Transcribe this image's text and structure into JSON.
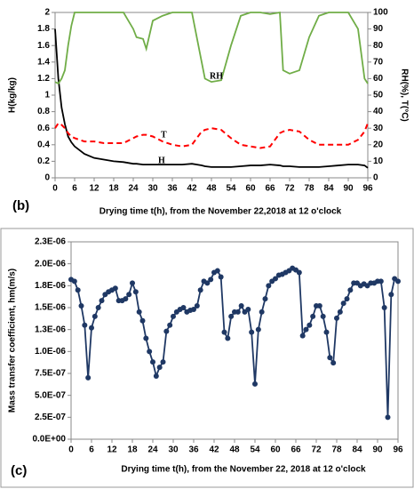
{
  "chart_data": [
    {
      "type": "line",
      "panel": "(b)",
      "x_label": "Drying time t(h), from the November 22,2018 at 12 o'clock",
      "y_label": "H(kg/kg)",
      "y2_label": "RH(%), T(°C)",
      "x": [
        0,
        1,
        2,
        3,
        4,
        5,
        6,
        9,
        12,
        15,
        18,
        21,
        24,
        25,
        27,
        28,
        30,
        33,
        36,
        39,
        42,
        45,
        46,
        48,
        51,
        54,
        57,
        60,
        63,
        66,
        69,
        70,
        72,
        75,
        78,
        81,
        84,
        87,
        90,
        93,
        95,
        96
      ],
      "xlim": [
        0,
        96
      ],
      "xticks": [
        0,
        6,
        12,
        18,
        24,
        30,
        36,
        42,
        48,
        54,
        60,
        66,
        72,
        78,
        84,
        90,
        96
      ],
      "ylim": [
        0,
        2
      ],
      "yticks": [
        0,
        0.2,
        0.4,
        0.6,
        0.8,
        1,
        1.2,
        1.4,
        1.6,
        1.8,
        2
      ],
      "y2lim": [
        0,
        100
      ],
      "y2ticks": [
        0,
        10,
        20,
        30,
        40,
        50,
        60,
        70,
        80,
        90,
        100
      ],
      "series": [
        {
          "name": "H",
          "color": "#000000",
          "axis": "y",
          "values": [
            1.8,
            1.2,
            0.85,
            0.65,
            0.5,
            0.43,
            0.38,
            0.29,
            0.24,
            0.22,
            0.2,
            0.19,
            0.17,
            0.17,
            0.16,
            0.16,
            0.16,
            0.16,
            0.16,
            0.16,
            0.17,
            0.15,
            0.14,
            0.13,
            0.13,
            0.13,
            0.14,
            0.15,
            0.15,
            0.16,
            0.15,
            0.14,
            0.14,
            0.13,
            0.13,
            0.13,
            0.14,
            0.15,
            0.16,
            0.16,
            0.15,
            0.12
          ]
        },
        {
          "name": "T",
          "color": "#ff0000",
          "axis": "y2",
          "dash": true,
          "values": [
            30,
            33,
            32,
            30,
            27,
            25,
            24,
            22,
            22,
            21,
            21,
            21,
            24,
            25,
            26,
            26,
            25,
            22,
            20,
            19,
            20,
            28,
            29,
            30,
            29,
            24,
            20,
            19,
            18,
            19,
            27,
            28,
            29,
            28,
            23,
            20,
            20,
            20,
            20,
            23,
            28,
            33
          ]
        },
        {
          "name": "RH",
          "color": "#70ad47",
          "axis": "y2",
          "values": [
            58,
            57,
            60,
            65,
            80,
            92,
            100,
            100,
            100,
            100,
            100,
            100,
            90,
            85,
            84,
            78,
            95,
            98,
            100,
            100,
            100,
            70,
            60,
            58,
            59,
            80,
            98,
            100,
            100,
            99,
            100,
            65,
            63,
            65,
            85,
            98,
            100,
            100,
            100,
            90,
            60,
            57
          ]
        }
      ]
    },
    {
      "type": "line",
      "panel": "(c)",
      "markers": true,
      "x_label": "Drying time t(h), from the November 22, 2018 at 12 o'clock",
      "y_label": "Mass transfer coefficient, hm(m/s)",
      "color": "#1f3864",
      "x": [
        0,
        1,
        2,
        3,
        4,
        5,
        6,
        7,
        8,
        9,
        10,
        11,
        12,
        13,
        14,
        15,
        16,
        17,
        18,
        19,
        20,
        21,
        22,
        23,
        24,
        25,
        26,
        27,
        28,
        29,
        30,
        31,
        32,
        33,
        34,
        35,
        36,
        37,
        38,
        39,
        40,
        41,
        42,
        43,
        44,
        45,
        46,
        47,
        48,
        49,
        50,
        51,
        52,
        53,
        54,
        55,
        56,
        57,
        58,
        59,
        60,
        61,
        62,
        63,
        64,
        65,
        66,
        67,
        68,
        69,
        70,
        71,
        72,
        73,
        74,
        75,
        76,
        77,
        78,
        79,
        80,
        81,
        82,
        83,
        84,
        85,
        86,
        87,
        88,
        89,
        90,
        91,
        92,
        93,
        94,
        95,
        96
      ],
      "values": [
        1.82e-06,
        1.8e-06,
        1.7e-06,
        1.52e-06,
        1.3e-06,
        7e-07,
        1.27e-06,
        1.4e-06,
        1.5e-06,
        1.58e-06,
        1.65e-06,
        1.68e-06,
        1.7e-06,
        1.72e-06,
        1.58e-06,
        1.58e-06,
        1.6e-06,
        1.65e-06,
        1.78e-06,
        1.68e-06,
        1.45e-06,
        1.35e-06,
        1.15e-06,
        1e-06,
        8.8e-07,
        7.2e-07,
        8.2e-07,
        8.8e-07,
        1.23e-06,
        1.3e-06,
        1.4e-06,
        1.45e-06,
        1.48e-06,
        1.5e-06,
        1.45e-06,
        1.47e-06,
        1.48e-06,
        1.52e-06,
        1.7e-06,
        1.8e-06,
        1.78e-06,
        1.82e-06,
        1.9e-06,
        1.92e-06,
        1.85e-06,
        1.22e-06,
        1.15e-06,
        1.4e-06,
        1.45e-06,
        1.45e-06,
        1.52e-06,
        1.45e-06,
        1.48e-06,
        1.22e-06,
        6.3e-07,
        1.25e-06,
        1.45e-06,
        1.6e-06,
        1.75e-06,
        1.8e-06,
        1.83e-06,
        1.87e-06,
        1.88e-06,
        1.9e-06,
        1.92e-06,
        1.95e-06,
        1.93e-06,
        1.9e-06,
        1.18e-06,
        1.25e-06,
        1.3e-06,
        1.4e-06,
        1.52e-06,
        1.52e-06,
        1.4e-06,
        1.22e-06,
        9.3e-07,
        8.7e-07,
        1.38e-06,
        1.45e-06,
        1.55e-06,
        1.6e-06,
        1.7e-06,
        1.78e-06,
        1.78e-06,
        1.75e-06,
        1.77e-06,
        1.75e-06,
        1.78e-06,
        1.78e-06,
        1.8e-06,
        1.8e-06,
        1.5e-06,
        2.5e-07,
        1.65e-06,
        1.83e-06,
        1.8e-06
      ],
      "xlim": [
        0,
        96
      ],
      "xticks": [
        0,
        6,
        12,
        18,
        24,
        30,
        36,
        42,
        48,
        54,
        60,
        66,
        72,
        78,
        84,
        90,
        96
      ],
      "ylim": [
        0,
        2.25e-06
      ],
      "yticks": [
        {
          "value": 0,
          "label": "0.0E+00"
        },
        {
          "value": 2.5e-07,
          "label": "2.5E-07"
        },
        {
          "value": 5e-07,
          "label": "5.0E-07"
        },
        {
          "value": 7.5e-07,
          "label": "7.5E-07"
        },
        {
          "value": 1e-06,
          "label": "1.0E-06"
        },
        {
          "value": 1.25e-06,
          "label": "1.3E-06"
        },
        {
          "value": 1.5e-06,
          "label": "1.5E-06"
        },
        {
          "value": 1.75e-06,
          "label": "1.8E-06"
        },
        {
          "value": 2e-06,
          "label": "2.0E-06"
        },
        {
          "value": 2.25e-06,
          "label": "2.3E-06"
        }
      ]
    }
  ]
}
